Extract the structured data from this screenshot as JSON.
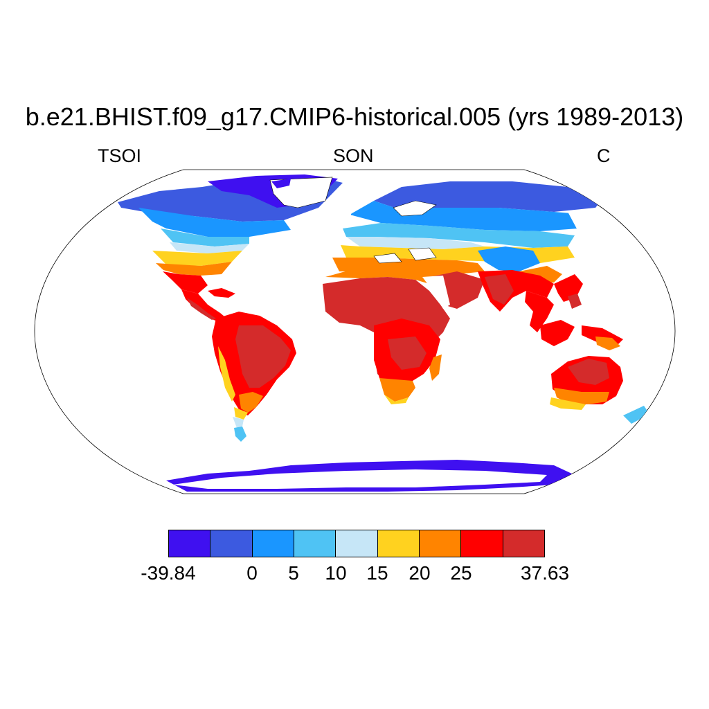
{
  "title": "b.e21.BHIST.f09_g17.CMIP6-historical.005 (yrs 1989-2013)",
  "subtitles": {
    "left": "TSOI",
    "center": "SON",
    "right": "C"
  },
  "colorbar": {
    "colors": [
      "#3f10f0",
      "#3c5ae0",
      "#1a96ff",
      "#4fc3f4",
      "#c6e6f7",
      "#ffd21f",
      "#ff8400",
      "#ff0000",
      "#d42b2b"
    ],
    "labels": [
      {
        "text": "-39.84",
        "edge": 0
      },
      {
        "text": "0",
        "edge": 2
      },
      {
        "text": "5",
        "edge": 3
      },
      {
        "text": "10",
        "edge": 4
      },
      {
        "text": "15",
        "edge": 5
      },
      {
        "text": "20",
        "edge": 6
      },
      {
        "text": "25",
        "edge": 7
      },
      {
        "text": "37.63",
        "edge": 9
      }
    ]
  }
}
